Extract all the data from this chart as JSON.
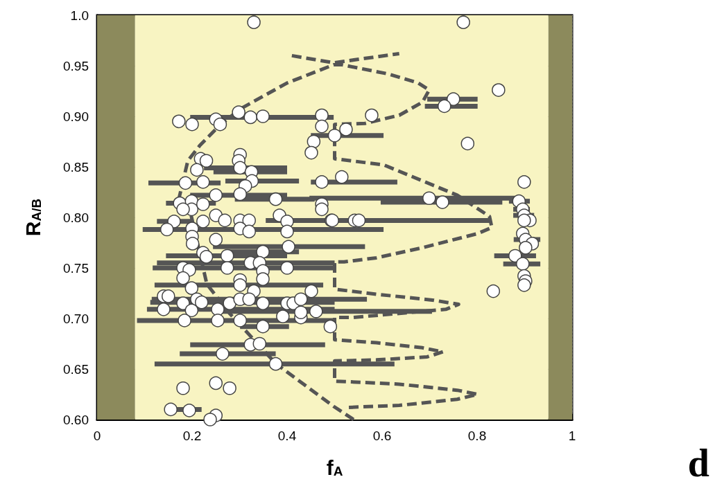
{
  "chart_data": {
    "type": "scatter",
    "xlabel": "f$_{A}$",
    "ylabel": "R$_{A/B}$",
    "annotations": [
      "d"
    ],
    "xlim": [
      0,
      1
    ],
    "xticks": [
      0,
      0.2,
      0.4,
      0.6,
      0.8,
      1
    ],
    "ylim": [
      0.6,
      1
    ],
    "yticks": [
      {
        "value": 0.6,
        "label": "0.60"
      },
      0.65,
      {
        "value": 0.7,
        "label": "0.70"
      },
      0.75,
      {
        "value": 0.8,
        "label": "0.80"
      },
      0.85,
      {
        "value": 0.9,
        "label": "0.90"
      },
      0.95,
      {
        "value": 1,
        "label": "1.0"
      }
    ],
    "grid": true,
    "bands": [
      {
        "axis": "x",
        "from": 0,
        "to": 0.08,
        "label": null,
        "color": "#8c8a5c"
      },
      {
        "axis": "x",
        "from": 0.08,
        "to": 0.95,
        "label": null,
        "color": "#f8f4c2"
      },
      {
        "axis": "x",
        "from": 0.95,
        "to": 1,
        "label": null,
        "color": "#8c8a5c"
      }
    ],
    "series": [
      {
        "type": "line",
        "color": "#555555",
        "line_style": "dashed",
        "marker": "none",
        "x": [
          0.54,
          0.498,
          0.377,
          0.279,
          0.231,
          0.196,
          0.172,
          0.191,
          0.216,
          0.26,
          0.304,
          0.4,
          0.498,
          0.515,
          0.612,
          0.676,
          0.699,
          0.685,
          0.636,
          0.564,
          0.5,
          0.5,
          0.603,
          0.758,
          0.826,
          0.831,
          0.801,
          0.685,
          0.588,
          0.52,
          0.5,
          0.5,
          0.588,
          0.709,
          0.761,
          0.734,
          0.636,
          0.539,
          0.5,
          0.5,
          0.588,
          0.685,
          0.728,
          0.695,
          0.588,
          0.5,
          0.5,
          0.636,
          0.758,
          0.801,
          0.758,
          0.636,
          0.527
        ],
        "values": [
          0.6,
          0.613,
          0.655,
          0.705,
          0.734,
          0.806,
          0.818,
          0.856,
          0.871,
          0.892,
          0.908,
          0.933,
          0.951,
          0.951,
          0.942,
          0.933,
          0.926,
          0.914,
          0.901,
          0.893,
          0.892,
          0.858,
          0.852,
          0.822,
          0.801,
          0.79,
          0.784,
          0.77,
          0.76,
          0.756,
          0.756,
          0.729,
          0.724,
          0.718,
          0.714,
          0.709,
          0.705,
          0.701,
          0.701,
          0.679,
          0.676,
          0.671,
          0.667,
          0.662,
          0.659,
          0.658,
          0.638,
          0.635,
          0.629,
          0.625,
          0.62,
          0.614,
          0.612
        ]
      },
      {
        "type": "line",
        "color": "#555555",
        "line_style": "dashed",
        "marker": "none",
        "x": [
          0.41,
          0.498,
          0.636
        ],
        "values": [
          0.96,
          0.953,
          0.962
        ]
      },
      {
        "type": "scatter",
        "color": "#ffffff",
        "marker": "circle",
        "x": [
          0.33,
          0.771,
          0.172,
          0.2,
          0.25,
          0.259,
          0.298,
          0.323,
          0.349,
          0.473,
          0.473,
          0.456,
          0.578,
          0.524,
          0.5,
          0.75,
          0.731,
          0.845,
          0.78,
          0.451,
          0.301,
          0.298,
          0.301,
          0.218,
          0.23,
          0.21,
          0.325,
          0.186,
          0.223,
          0.326,
          0.312,
          0.473,
          0.515,
          0.25,
          0.301,
          0.376,
          0.473,
          0.473,
          0.699,
          0.727,
          0.174,
          0.199,
          0.199,
          0.223,
          0.181,
          0.25,
          0.269,
          0.301,
          0.32,
          0.384,
          0.4,
          0.493,
          0.495,
          0.542,
          0.551,
          0.162,
          0.147,
          0.223,
          0.301,
          0.32,
          0.4,
          0.2,
          0.2,
          0.201,
          0.25,
          0.403,
          0.349,
          0.223,
          0.23,
          0.274,
          0.323,
          0.342,
          0.274,
          0.4,
          0.349,
          0.181,
          0.194,
          0.181,
          0.301,
          0.301,
          0.349,
          0.199,
          0.33,
          0.451,
          0.14,
          0.15,
          0.181,
          0.21,
          0.22,
          0.14,
          0.199,
          0.254,
          0.279,
          0.301,
          0.32,
          0.349,
          0.4,
          0.413,
          0.429,
          0.461,
          0.429,
          0.429,
          0.391,
          0.491,
          0.184,
          0.254,
          0.301,
          0.349,
          0.323,
          0.342,
          0.264,
          0.376,
          0.25,
          0.279,
          0.181,
          0.155,
          0.194,
          0.25,
          0.238,
          0.834,
          0.899,
          0.888,
          0.896,
          0.899,
          0.911,
          0.899,
          0.896,
          0.902,
          0.916,
          0.902,
          0.88,
          0.896,
          0.899,
          0.902,
          0.899
        ],
        "values": [
          0.993,
          0.993,
          0.895,
          0.892,
          0.897,
          0.892,
          0.904,
          0.899,
          0.9,
          0.901,
          0.89,
          0.875,
          0.901,
          0.887,
          0.881,
          0.917,
          0.91,
          0.926,
          0.873,
          0.864,
          0.862,
          0.856,
          0.849,
          0.858,
          0.856,
          0.847,
          0.845,
          0.834,
          0.835,
          0.836,
          0.831,
          0.835,
          0.84,
          0.822,
          0.823,
          0.818,
          0.813,
          0.808,
          0.819,
          0.815,
          0.814,
          0.816,
          0.808,
          0.813,
          0.808,
          0.802,
          0.797,
          0.797,
          0.797,
          0.802,
          0.796,
          0.797,
          0.797,
          0.797,
          0.797,
          0.796,
          0.788,
          0.796,
          0.789,
          0.786,
          0.786,
          0.789,
          0.781,
          0.774,
          0.778,
          0.771,
          0.766,
          0.765,
          0.761,
          0.762,
          0.755,
          0.755,
          0.75,
          0.75,
          0.747,
          0.75,
          0.748,
          0.74,
          0.738,
          0.733,
          0.739,
          0.73,
          0.727,
          0.727,
          0.722,
          0.722,
          0.715,
          0.719,
          0.716,
          0.709,
          0.708,
          0.709,
          0.715,
          0.719,
          0.719,
          0.715,
          0.715,
          0.715,
          0.719,
          0.707,
          0.701,
          0.706,
          0.702,
          0.692,
          0.698,
          0.698,
          0.698,
          0.692,
          0.674,
          0.675,
          0.665,
          0.655,
          0.636,
          0.631,
          0.631,
          0.61,
          0.609,
          0.604,
          0.6,
          0.727,
          0.835,
          0.816,
          0.808,
          0.802,
          0.797,
          0.797,
          0.784,
          0.778,
          0.774,
          0.77,
          0.762,
          0.754,
          0.742,
          0.737,
          0.733
        ],
        "xerrors": [
          null,
          null,
          null,
          null,
          null,
          null,
          null,
          [
            0.196,
            0.498
          ],
          null,
          null,
          null,
          null,
          null,
          null,
          [
            0.45,
            0.603
          ],
          [
            0.695,
            0.801
          ],
          [
            0.69,
            0.801
          ],
          null,
          null,
          null,
          null,
          null,
          [
            0.225,
            0.4
          ],
          null,
          null,
          null,
          [
            0.245,
            0.4
          ],
          [
            0.108,
            0.26
          ],
          null,
          [
            0.27,
            0.425
          ],
          null,
          [
            0.45,
            0.632
          ],
          null,
          [
            0.196,
            0.4
          ],
          null,
          [
            0.29,
            0.458
          ],
          null,
          null,
          [
            0.447,
            0.885
          ],
          [
            0.597,
            0.853
          ],
          [
            0.145,
            0.25
          ],
          null,
          null,
          null,
          null,
          null,
          null,
          null,
          null,
          null,
          null,
          null,
          null,
          [
            0.355,
            0.83
          ],
          null,
          [
            0.126,
            0.2
          ],
          [
            0.096,
            0.603
          ],
          null,
          null,
          null,
          null,
          null,
          null,
          null,
          null,
          [
            0.244,
            0.564
          ],
          [
            0.276,
            0.425
          ],
          null,
          null,
          [
            0.145,
            0.4
          ],
          [
            0.126,
            0.5
          ],
          null,
          [
            0.117,
            0.5
          ],
          null,
          null,
          null,
          null,
          null,
          null,
          [
            0.121,
            0.476
          ],
          null,
          null,
          null,
          null,
          null,
          null,
          null,
          [
            0.115,
            0.568
          ],
          [
            0.112,
            0.5
          ],
          [
            0.105,
            0.5
          ],
          null,
          null,
          null,
          null,
          null,
          null,
          null,
          null,
          null,
          [
            0.25,
            0.705
          ],
          null,
          null,
          null,
          null,
          [
            0.084,
            0.5
          ],
          null,
          null,
          [
            0.301,
            0.404
          ],
          [
            0.196,
            0.48
          ],
          null,
          [
            0.174,
            0.376
          ],
          [
            0.121,
            0.626
          ],
          null,
          null,
          null,
          [
            0.155,
            0.22
          ],
          null,
          null,
          null,
          null,
          null,
          [
            0.867,
            0.911
          ],
          [
            0.876,
            0.911
          ],
          [
            0.876,
            0.92
          ],
          null,
          null,
          null,
          [
            0.877,
            0.933
          ],
          null,
          null,
          [
            0.836,
            0.924
          ],
          [
            0.855,
            0.933
          ],
          null,
          null,
          null
        ]
      }
    ]
  }
}
